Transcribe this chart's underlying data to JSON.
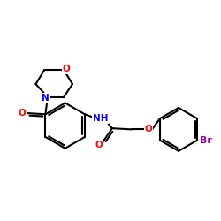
{
  "bg_color": "#ffffff",
  "bond_color": "#000000",
  "bond_width": 1.5,
  "O_color": "#ff0000",
  "N_color": "#0000ff",
  "Br_color": "#9900aa",
  "text_fontsize": 7.5,
  "figsize": [
    2.5,
    2.5
  ],
  "dpi": 100,
  "xlim": [
    0,
    10
  ],
  "ylim": [
    0,
    10
  ]
}
